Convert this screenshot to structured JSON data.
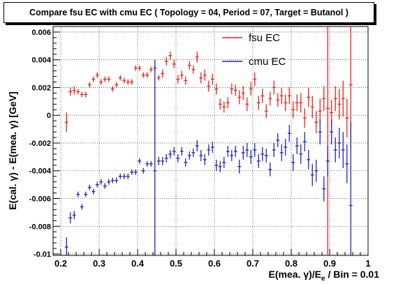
{
  "title": "Compare fsu EC with cmu EC  ( Topology = 04, Period = 07, Target = Butanol )",
  "chart_data": {
    "type": "scatter",
    "title": "Compare fsu EC with cmu EC  ( Topology = 04, Period = 07, Target = Butanol )",
    "xlabel_main": "E(mea. γ)/E",
    "xlabel_sub": "e",
    "xlabel_tail": " / Bin = 0.01",
    "ylabel": "E(cal. γ) - E(mea. γ) [GeV]",
    "xlim": [
      0.18,
      1.0
    ],
    "ylim": [
      -0.0101,
      0.0064
    ],
    "x_ticks": [
      0.2,
      0.3,
      0.4,
      0.5,
      0.6,
      0.7,
      0.8,
      0.9,
      1.0
    ],
    "x_tick_labels": [
      "0.2",
      "0.3",
      "0.4",
      "0.5",
      "0.6",
      "0.7",
      "0.8",
      "0.9",
      "1"
    ],
    "y_ticks": [
      -0.01,
      -0.008,
      -0.006,
      -0.004,
      -0.002,
      0,
      0.002,
      0.004,
      0.006
    ],
    "y_tick_labels": [
      "-0.01",
      "-0.008",
      "-0.006",
      "-0.004",
      "-0.002",
      "0",
      "0.002",
      "0.004",
      "0.006"
    ],
    "grid": true,
    "legend_position": "top-center",
    "series": [
      {
        "name": "fsu EC",
        "color": "#e8231c",
        "points": [
          [
            0.215,
            -0.0005,
            0.0007
          ],
          [
            0.225,
            0.0017,
            0.0003
          ],
          [
            0.235,
            0.0018,
            0.0003
          ],
          [
            0.245,
            0.0017,
            0.0002
          ],
          [
            0.255,
            0.0015,
            0.0002
          ],
          [
            0.265,
            0.0015,
            0.0002
          ],
          [
            0.275,
            0.0022,
            0.0002
          ],
          [
            0.285,
            0.0026,
            0.0002
          ],
          [
            0.295,
            0.0029,
            0.0002
          ],
          [
            0.305,
            0.0024,
            0.0002
          ],
          [
            0.315,
            0.0026,
            0.0002
          ],
          [
            0.325,
            0.0026,
            0.0002
          ],
          [
            0.335,
            0.0019,
            0.0002
          ],
          [
            0.345,
            0.0022,
            0.0002
          ],
          [
            0.355,
            0.0027,
            0.0002
          ],
          [
            0.365,
            0.0025,
            0.0002
          ],
          [
            0.375,
            0.0024,
            0.0002
          ],
          [
            0.385,
            0.0024,
            0.0002
          ],
          [
            0.395,
            0.0034,
            0.0002
          ],
          [
            0.405,
            0.0034,
            0.0002
          ],
          [
            0.415,
            0.0029,
            0.0002
          ],
          [
            0.425,
            0.0029,
            0.0002
          ],
          [
            0.435,
            0.0033,
            0.0002
          ],
          [
            0.445,
            0.0034,
            0.0002
          ],
          [
            0.455,
            0.0027,
            0.0002
          ],
          [
            0.465,
            0.003,
            0.0003
          ],
          [
            0.475,
            0.0039,
            0.0003
          ],
          [
            0.485,
            0.0043,
            0.0003
          ],
          [
            0.495,
            0.0037,
            0.0003
          ],
          [
            0.505,
            0.0026,
            0.0003
          ],
          [
            0.515,
            0.0029,
            0.0003
          ],
          [
            0.525,
            0.0025,
            0.0003
          ],
          [
            0.535,
            0.0036,
            0.0003
          ],
          [
            0.545,
            0.0033,
            0.0003
          ],
          [
            0.555,
            0.0042,
            0.0004
          ],
          [
            0.565,
            0.0027,
            0.0004
          ],
          [
            0.575,
            0.0029,
            0.0004
          ],
          [
            0.585,
            0.0021,
            0.0004
          ],
          [
            0.595,
            0.0026,
            0.0004
          ],
          [
            0.605,
            0.0019,
            0.0004
          ],
          [
            0.615,
            0.0008,
            0.0004
          ],
          [
            0.625,
            0.0006,
            0.0004
          ],
          [
            0.635,
            0.0009,
            0.0004
          ],
          [
            0.645,
            0.0019,
            0.0004
          ],
          [
            0.655,
            0.0018,
            0.0004
          ],
          [
            0.665,
            0.0013,
            0.0005
          ],
          [
            0.675,
            0.0016,
            0.0005
          ],
          [
            0.685,
            0.0008,
            0.0005
          ],
          [
            0.695,
            0.0019,
            0.0005
          ],
          [
            0.705,
            0.0026,
            0.0005
          ],
          [
            0.715,
            0.0009,
            0.0005
          ],
          [
            0.725,
            0.0014,
            0.0005
          ],
          [
            0.735,
            0.0003,
            0.0005
          ],
          [
            0.745,
            0.0012,
            0.0005
          ],
          [
            0.755,
            0.002,
            0.0005
          ],
          [
            0.765,
            0.0011,
            0.0005
          ],
          [
            0.775,
            0.0014,
            0.0006
          ],
          [
            0.785,
            0.0009,
            0.0006
          ],
          [
            0.795,
            0.0014,
            0.0006
          ],
          [
            0.805,
            0.0004,
            0.0006
          ],
          [
            0.815,
            0.0009,
            0.0006
          ],
          [
            0.825,
            0.0009,
            0.0007
          ],
          [
            0.835,
            -0.0002,
            0.0007
          ],
          [
            0.845,
            0.0013,
            0.0007
          ],
          [
            0.855,
            0.0006,
            0.0008
          ],
          [
            0.865,
            -0.0005,
            0.0008
          ],
          [
            0.875,
            0.0003,
            0.0009
          ],
          [
            0.885,
            0.0012,
            0.0009
          ],
          [
            0.895,
            0.0005,
            0.011
          ],
          [
            0.905,
            0.0002,
            0.0009
          ],
          [
            0.915,
            0.0012,
            0.0009
          ],
          [
            0.925,
            0.0008,
            0.0011
          ],
          [
            0.935,
            0.0012,
            0.0013
          ],
          [
            0.945,
            -0.0002,
            0.0014
          ],
          [
            0.955,
            0.0022,
            0.0045
          ]
        ]
      },
      {
        "name": "cmu EC",
        "color": "#1f23b4",
        "points": [
          [
            0.215,
            -0.0095,
            0.0007
          ],
          [
            0.225,
            -0.0074,
            0.0004
          ],
          [
            0.235,
            -0.0072,
            0.0003
          ],
          [
            0.245,
            -0.0057,
            0.0002
          ],
          [
            0.255,
            -0.0066,
            0.0002
          ],
          [
            0.265,
            -0.0057,
            0.0002
          ],
          [
            0.275,
            -0.0052,
            0.0002
          ],
          [
            0.285,
            -0.0055,
            0.0002
          ],
          [
            0.295,
            -0.005,
            0.0002
          ],
          [
            0.305,
            -0.0048,
            0.0002
          ],
          [
            0.315,
            -0.0051,
            0.0002
          ],
          [
            0.325,
            -0.0048,
            0.0002
          ],
          [
            0.335,
            -0.0047,
            0.0002
          ],
          [
            0.345,
            -0.0047,
            0.0002
          ],
          [
            0.355,
            -0.0044,
            0.0002
          ],
          [
            0.365,
            -0.0044,
            0.0002
          ],
          [
            0.375,
            -0.0044,
            0.0002
          ],
          [
            0.385,
            -0.0041,
            0.0002
          ],
          [
            0.395,
            -0.0041,
            0.0002
          ],
          [
            0.405,
            -0.0033,
            0.0002
          ],
          [
            0.415,
            -0.004,
            0.0002
          ],
          [
            0.425,
            -0.0035,
            0.0002
          ],
          [
            0.435,
            -0.0035,
            0.0002
          ],
          [
            0.445,
            -0.004,
            0.008
          ],
          [
            0.455,
            -0.0033,
            0.0003
          ],
          [
            0.465,
            -0.0033,
            0.0003
          ],
          [
            0.475,
            -0.0031,
            0.0003
          ],
          [
            0.485,
            -0.0028,
            0.0003
          ],
          [
            0.495,
            -0.0026,
            0.0003
          ],
          [
            0.505,
            -0.0031,
            0.0003
          ],
          [
            0.515,
            -0.0026,
            0.0003
          ],
          [
            0.525,
            -0.0034,
            0.0003
          ],
          [
            0.535,
            -0.0029,
            0.0003
          ],
          [
            0.545,
            -0.0027,
            0.0003
          ],
          [
            0.555,
            -0.0022,
            0.0004
          ],
          [
            0.565,
            -0.0029,
            0.0004
          ],
          [
            0.575,
            -0.0032,
            0.0004
          ],
          [
            0.585,
            -0.0025,
            0.0004
          ],
          [
            0.595,
            -0.0023,
            0.0004
          ],
          [
            0.605,
            -0.0036,
            0.0004
          ],
          [
            0.615,
            -0.0037,
            0.0004
          ],
          [
            0.625,
            -0.0034,
            0.0004
          ],
          [
            0.635,
            -0.0026,
            0.0004
          ],
          [
            0.645,
            -0.0029,
            0.0004
          ],
          [
            0.655,
            -0.0026,
            0.0004
          ],
          [
            0.665,
            -0.0037,
            0.0005
          ],
          [
            0.675,
            -0.0027,
            0.0005
          ],
          [
            0.685,
            -0.0025,
            0.0005
          ],
          [
            0.695,
            -0.003,
            0.0005
          ],
          [
            0.705,
            -0.0025,
            0.0005
          ],
          [
            0.715,
            -0.0033,
            0.0005
          ],
          [
            0.725,
            -0.0028,
            0.0005
          ],
          [
            0.735,
            -0.0029,
            0.0005
          ],
          [
            0.745,
            -0.0039,
            0.0005
          ],
          [
            0.755,
            -0.0025,
            0.0005
          ],
          [
            0.765,
            -0.0018,
            0.0005
          ],
          [
            0.775,
            -0.0027,
            0.0006
          ],
          [
            0.785,
            -0.0023,
            0.0006
          ],
          [
            0.795,
            -0.0013,
            0.0006
          ],
          [
            0.805,
            -0.0034,
            0.0006
          ],
          [
            0.815,
            -0.0022,
            0.0006
          ],
          [
            0.825,
            -0.0028,
            0.0007
          ],
          [
            0.835,
            -0.0019,
            0.0007
          ],
          [
            0.845,
            -0.0032,
            0.0007
          ],
          [
            0.855,
            -0.0043,
            0.0008
          ],
          [
            0.865,
            -0.004,
            0.0008
          ],
          [
            0.875,
            -0.0012,
            0.0009
          ],
          [
            0.885,
            -0.0053,
            0.0009
          ],
          [
            0.895,
            -0.0033,
            0.0011
          ],
          [
            0.905,
            -0.0012,
            0.0009
          ],
          [
            0.915,
            -0.0025,
            0.0009
          ],
          [
            0.925,
            -0.002,
            0.0011
          ],
          [
            0.935,
            -0.0025,
            0.0013
          ],
          [
            0.945,
            -0.0035,
            0.0014
          ],
          [
            0.955,
            -0.0065,
            0.006
          ]
        ]
      }
    ]
  }
}
